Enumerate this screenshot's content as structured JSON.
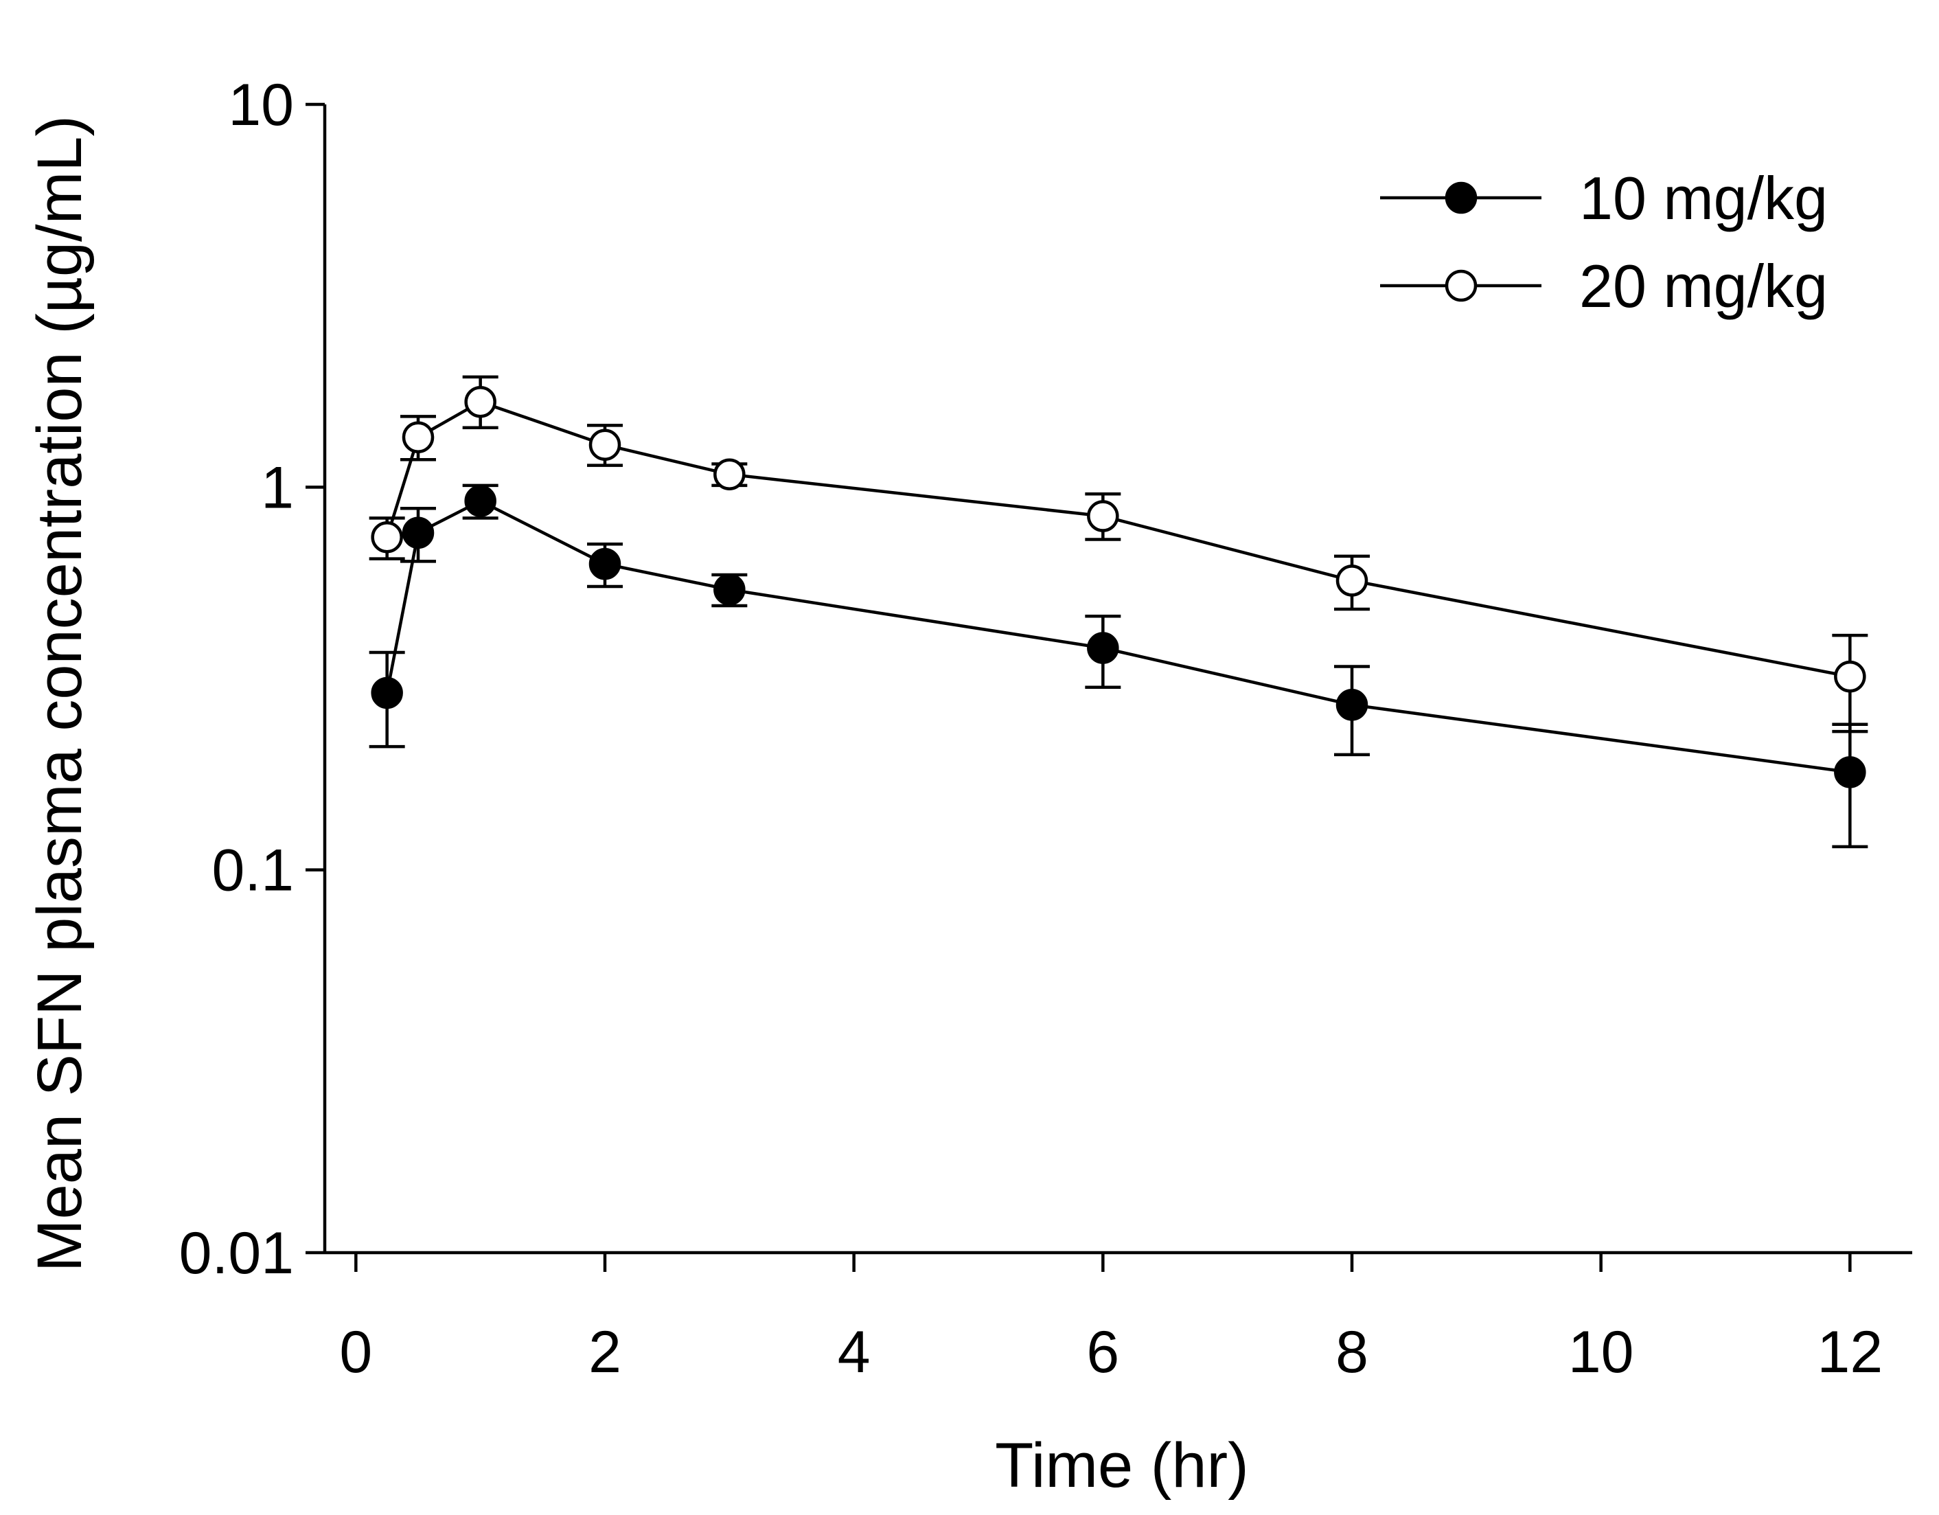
{
  "chart_data": {
    "type": "line",
    "title": "",
    "xlabel": "Time (hr)",
    "ylabel": "Mean SFN plasma concentration (µg/mL)",
    "xlim": [
      -0.25,
      12.5
    ],
    "ylim": [
      0.01,
      10
    ],
    "yscale": "log",
    "xticks": [
      0,
      2,
      4,
      6,
      8,
      10,
      12
    ],
    "xtick_labels": [
      "0",
      "2",
      "4",
      "6",
      "8",
      "10",
      "12"
    ],
    "yticks": [
      0.01,
      0.1,
      1,
      10
    ],
    "ytick_labels": [
      "0.01",
      "0.1",
      "1",
      "10"
    ],
    "grid": false,
    "legend_position": "top-right",
    "series": [
      {
        "name": "10 mg/kg",
        "marker": "filled-circle",
        "color": "#000000",
        "x": [
          0.25,
          0.5,
          1,
          2,
          3,
          6,
          8,
          12
        ],
        "y": [
          0.29,
          0.76,
          0.92,
          0.63,
          0.54,
          0.38,
          0.27,
          0.18
        ],
        "err_upper": [
          0.37,
          0.88,
          1.01,
          0.71,
          0.59,
          0.46,
          0.34,
          0.24
        ],
        "err_lower": [
          0.21,
          0.64,
          0.83,
          0.55,
          0.49,
          0.3,
          0.2,
          0.115
        ]
      },
      {
        "name": "20 mg/kg",
        "marker": "open-circle",
        "color": "#000000",
        "x": [
          0.25,
          0.5,
          1,
          2,
          3,
          6,
          8,
          12
        ],
        "y": [
          0.74,
          1.35,
          1.67,
          1.29,
          1.08,
          0.84,
          0.57,
          0.32
        ],
        "err_upper": [
          0.83,
          1.53,
          1.94,
          1.45,
          1.15,
          0.96,
          0.66,
          0.41
        ],
        "err_lower": [
          0.65,
          1.18,
          1.43,
          1.14,
          1.01,
          0.73,
          0.48,
          0.23
        ]
      }
    ]
  }
}
